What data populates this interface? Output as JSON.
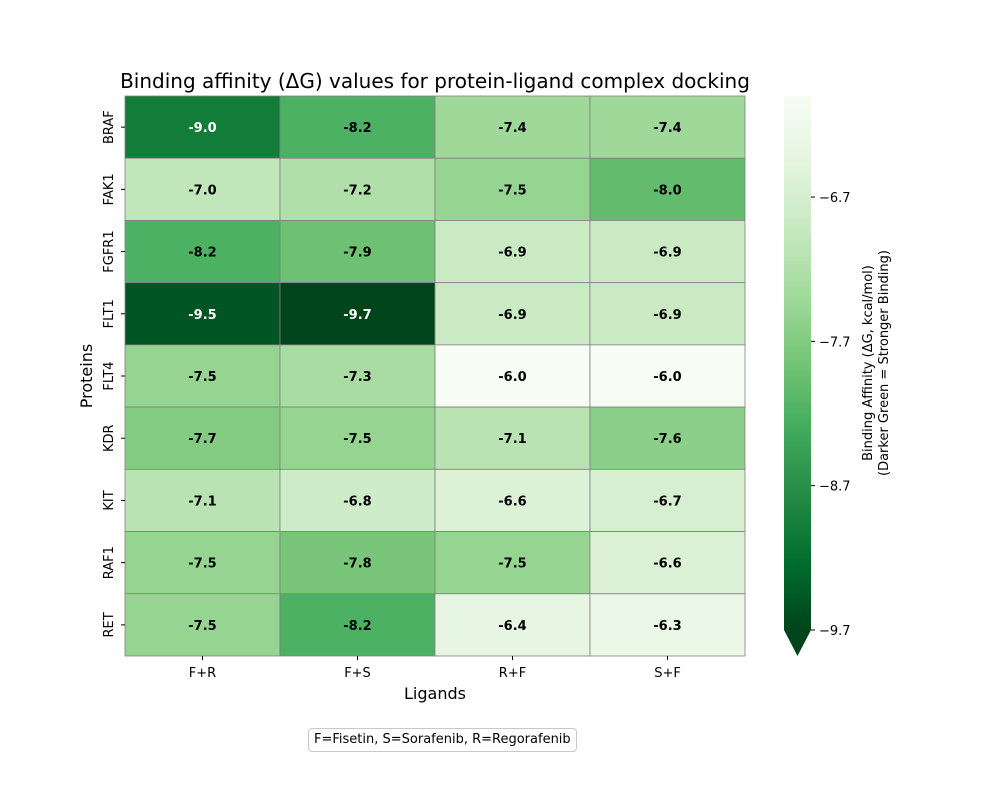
{
  "chart_data": {
    "type": "heatmap",
    "title": "Binding affinity (ΔG) values for protein-ligand complex docking",
    "xlabel": "Ligands",
    "ylabel": "Proteins",
    "x_categories": [
      "F+R",
      "F+S",
      "R+F",
      "S+F"
    ],
    "y_categories": [
      "BRAF",
      "FAK1",
      "FGFR1",
      "FLT1",
      "FLT4",
      "KDR",
      "KIT",
      "RAF1",
      "RET"
    ],
    "values": [
      [
        -9.0,
        -8.2,
        -7.4,
        -7.4
      ],
      [
        -7.0,
        -7.2,
        -7.5,
        -8.0
      ],
      [
        -8.2,
        -7.9,
        -6.9,
        -6.9
      ],
      [
        -9.5,
        -9.7,
        -6.9,
        -6.9
      ],
      [
        -7.5,
        -7.3,
        -6.0,
        -6.0
      ],
      [
        -7.7,
        -7.5,
        -7.1,
        -7.6
      ],
      [
        -7.1,
        -6.8,
        -6.6,
        -6.7
      ],
      [
        -7.5,
        -7.8,
        -7.5,
        -6.6
      ],
      [
        -7.5,
        -8.2,
        -6.4,
        -6.3
      ]
    ],
    "colorscale": "Greens",
    "color_range": [
      -9.7,
      -6.0
    ],
    "colorbar": {
      "label_line1": "Binding Affinity (ΔG, kcal/mol)",
      "label_line2": "(Darker Green = Stronger Binding)",
      "ticks": [
        -6.7,
        -7.7,
        -8.7,
        -9.7
      ],
      "tick_labels": [
        "−6.7",
        "−7.7",
        "−8.7",
        "−9.7"
      ],
      "extend": "min"
    },
    "footnote": "F=Fisetin, S=Sorafenib, R=Regorafenib"
  }
}
